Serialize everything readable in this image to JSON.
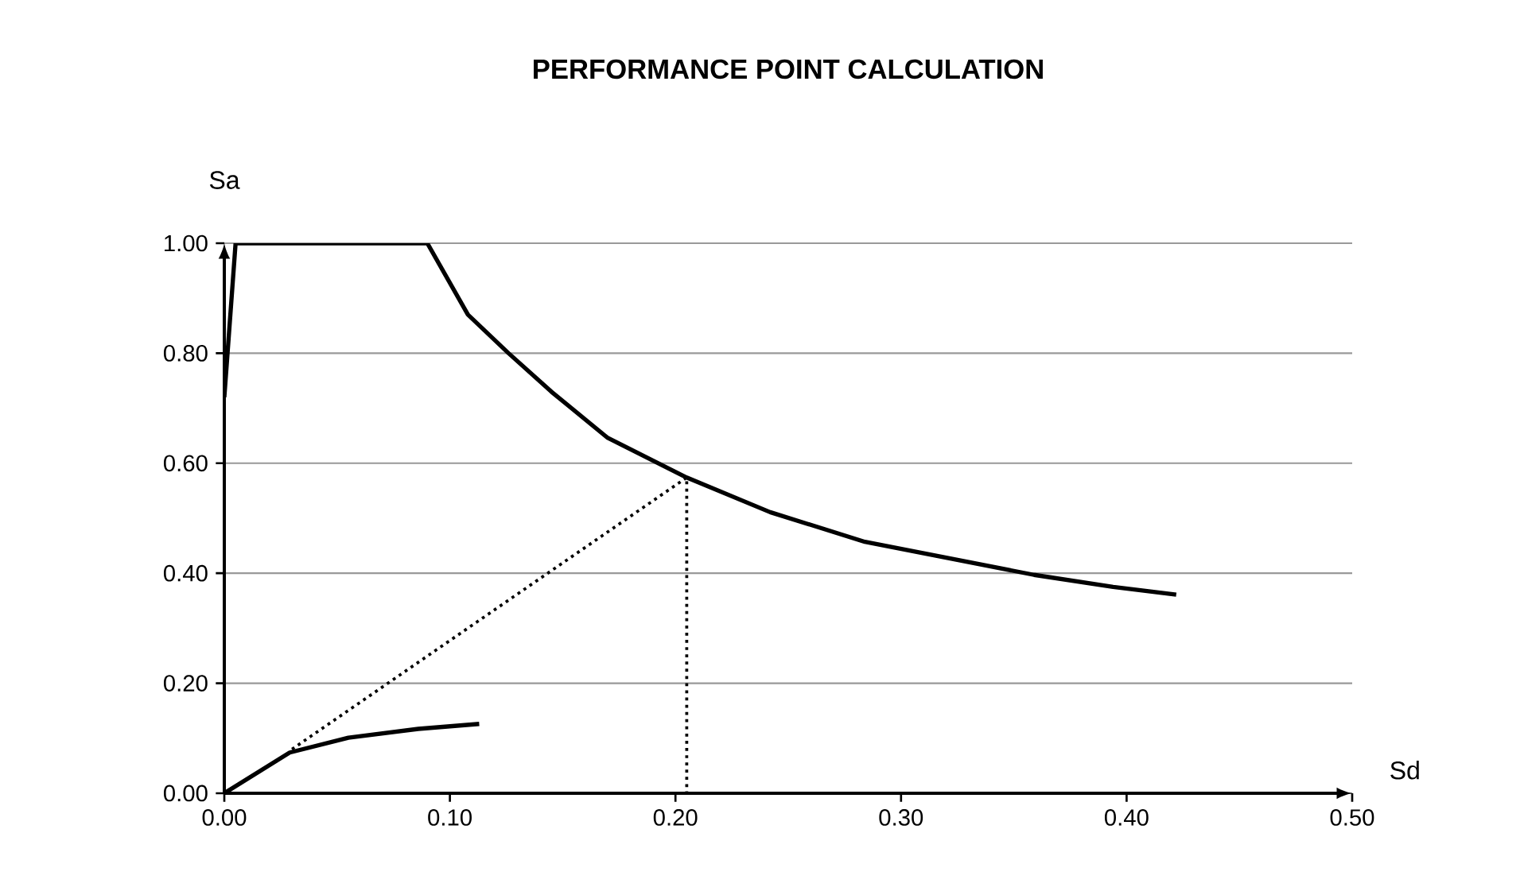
{
  "chart_data": {
    "type": "line",
    "title": "PERFORMANCE POINT CALCULATION",
    "xlabel": "Sd",
    "ylabel": "Sa",
    "xlim": [
      0,
      0.5
    ],
    "ylim": [
      0,
      1.0
    ],
    "xticks": [
      {
        "value": 0,
        "label": "0.00"
      },
      {
        "value": 0.1,
        "label": "0.10"
      },
      {
        "value": 0.2,
        "label": "0.20"
      },
      {
        "value": 0.3,
        "label": "0.30"
      },
      {
        "value": 0.4,
        "label": "0.40"
      },
      {
        "value": 0.5,
        "label": "0.50"
      }
    ],
    "yticks": [
      {
        "value": 0,
        "label": "0.00"
      },
      {
        "value": 0.2,
        "label": "0.20"
      },
      {
        "value": 0.4,
        "label": "0.40"
      },
      {
        "value": 0.6,
        "label": "0.60"
      },
      {
        "value": 0.8,
        "label": "0.80"
      },
      {
        "value": 1.0,
        "label": "1.00"
      }
    ],
    "grid": "y",
    "series": [
      {
        "color": "#000000",
        "line_style": "solid",
        "x": [
          0,
          0.005,
          0.09,
          0.108,
          0.126,
          0.145,
          0.17,
          0.205,
          0.242,
          0.284,
          0.359,
          0.394,
          0.422
        ],
        "values": [
          0.72,
          1.0,
          1.0,
          0.87,
          0.8,
          0.73,
          0.646,
          0.574,
          0.511,
          0.457,
          0.397,
          0.375,
          0.361
        ]
      },
      {
        "color": "#000000",
        "line_style": "solid",
        "x": [
          0,
          0.029,
          0.055,
          0.086,
          0.113
        ],
        "values": [
          0,
          0.074,
          0.101,
          0.117,
          0.126
        ]
      },
      {
        "color": "#000000",
        "line_style": "dotted",
        "x": [
          0.03,
          0.205,
          0.205
        ],
        "values": [
          0.08,
          0.574,
          0
        ]
      }
    ]
  }
}
